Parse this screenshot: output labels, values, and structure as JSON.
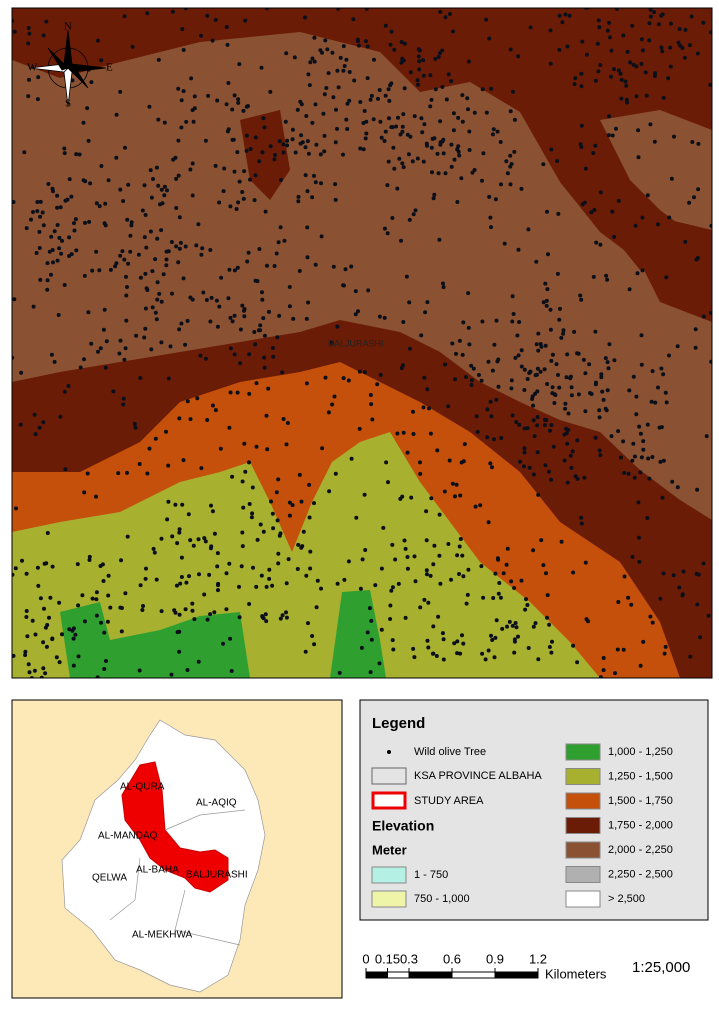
{
  "compass": {
    "n": "N",
    "e": "E",
    "s": "S",
    "w": "W"
  },
  "map_label": "BALJURASHI",
  "inset": {
    "labels": [
      "AL-QURA",
      "AL-AQIQ",
      "AL-MANDAQ",
      "AL-BAHA",
      "BALJURASHI",
      "QELWA",
      "AL-MEKHWA"
    ]
  },
  "legend": {
    "title": "Legend",
    "items": [
      {
        "label": "Wild olive Tree"
      },
      {
        "label": "KSA PROVINCE ALBAHA"
      },
      {
        "label": "STUDY AREA"
      }
    ],
    "elevation_title": "Elevation",
    "unit": "Meter",
    "classes": [
      {
        "label": "1 - 750",
        "color": "#b4f0e4"
      },
      {
        "label": "750 - 1,000",
        "color": "#eef5a8"
      },
      {
        "label": "1,000 - 1,250",
        "color": "#2fa02f"
      },
      {
        "label": "1,250 - 1,500",
        "color": "#a8b030"
      },
      {
        "label": "1,500 - 1,750",
        "color": "#c4500c"
      },
      {
        "label": "1,750 - 2,000",
        "color": "#6b1c06"
      },
      {
        "label": "2,000 - 2,250",
        "color": "#8a5232"
      },
      {
        "label": "2,250 - 2,500",
        "color": "#b0b0b0"
      },
      {
        "label": "> 2,500",
        "color": "#ffffff"
      }
    ]
  },
  "scale_bar": {
    "ticks": [
      0,
      0.15,
      0.3,
      0.6,
      0.9,
      1.2
    ],
    "unit": "Kilometers",
    "ratio": "1:25,000"
  }
}
